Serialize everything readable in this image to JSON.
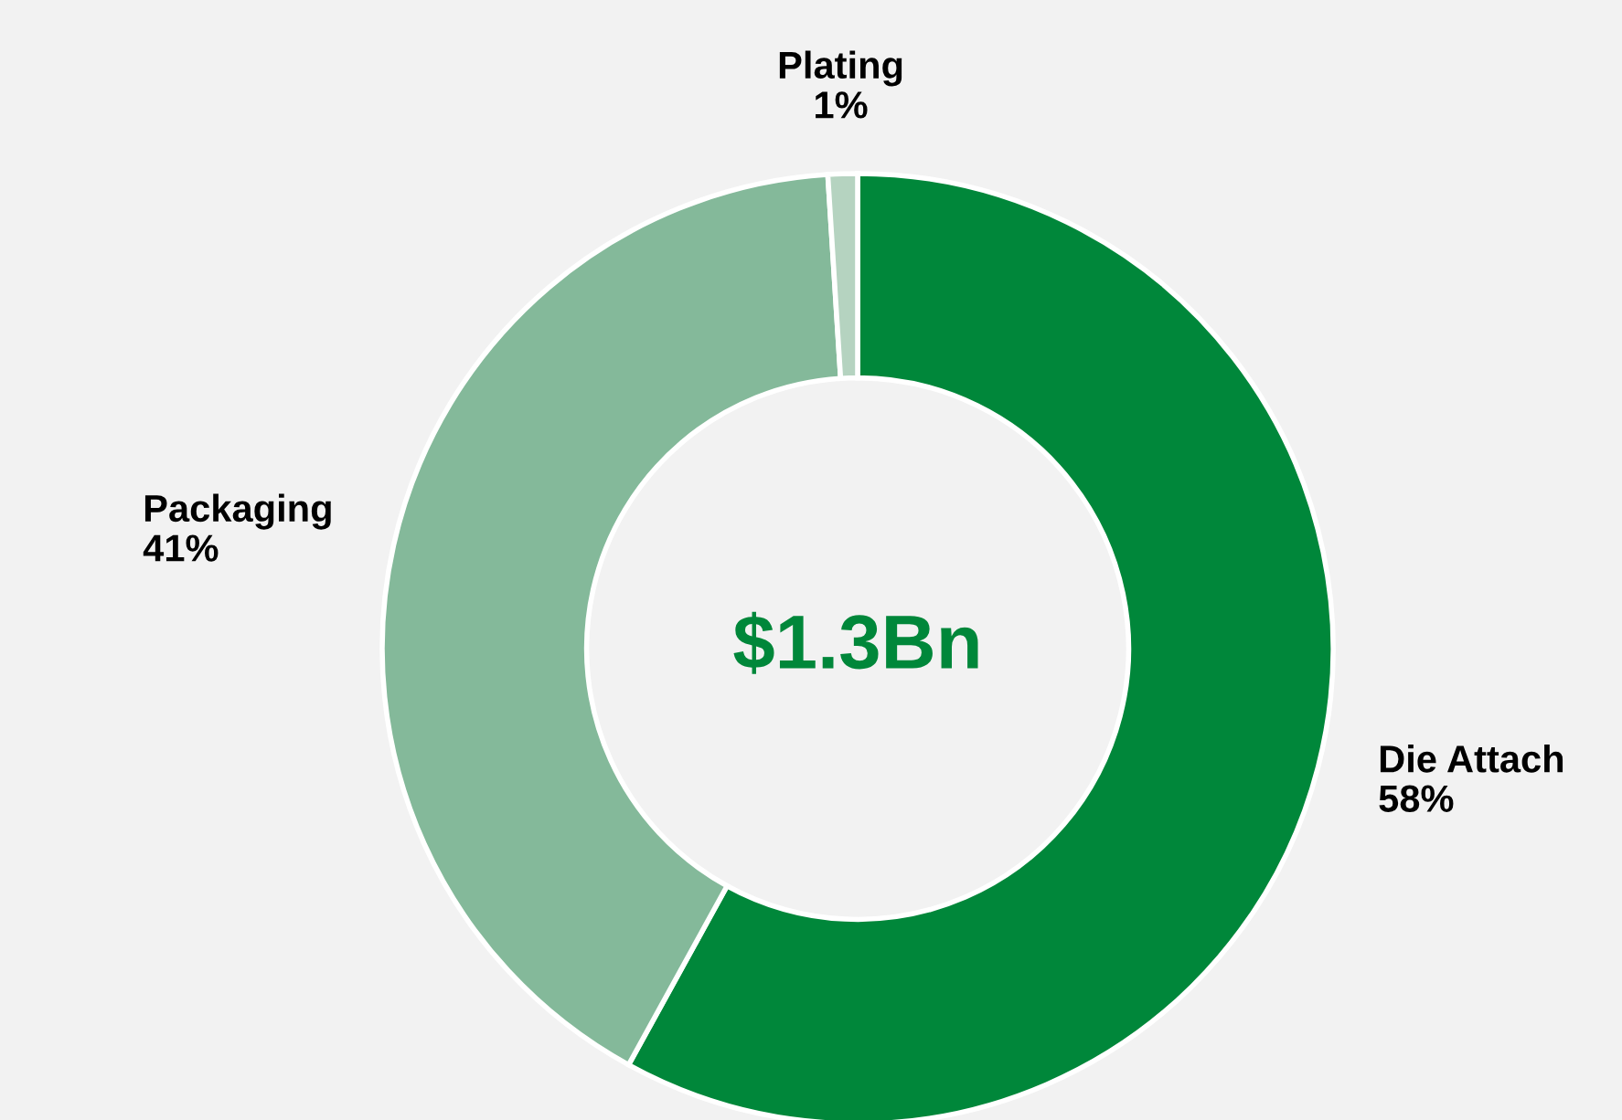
{
  "chart_data": {
    "type": "donut",
    "categories": [
      "Die Attach",
      "Packaging",
      "Plating"
    ],
    "values": [
      58,
      41,
      1
    ],
    "value_labels": [
      "58%",
      "41%",
      "1%"
    ],
    "colors": [
      "#00873a",
      "#84b99a",
      "#b5d3c0"
    ],
    "annotations": [
      "$1.3Bn"
    ],
    "legend": false
  }
}
